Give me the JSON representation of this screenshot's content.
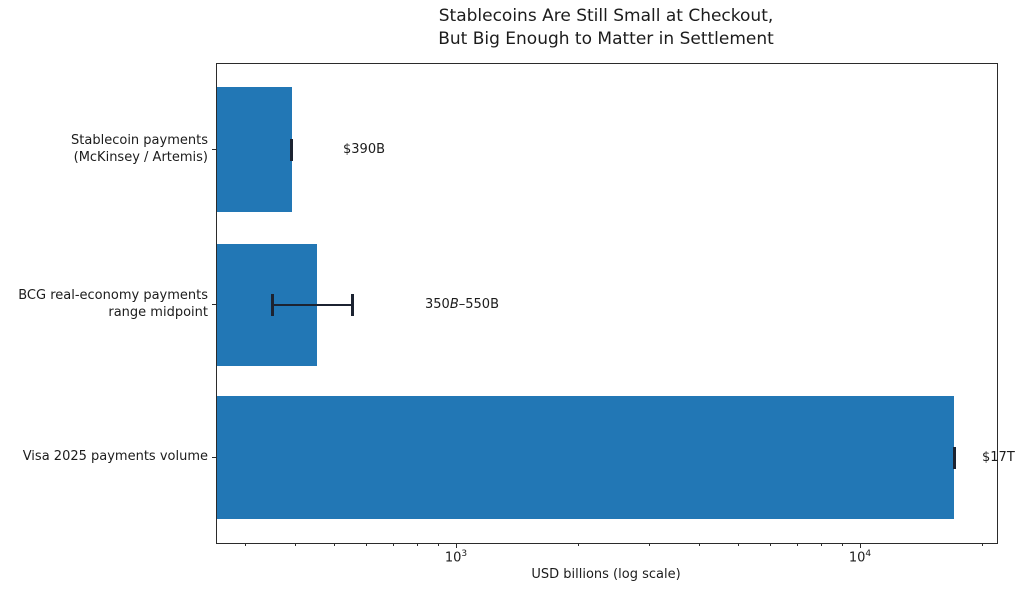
{
  "chart_data": {
    "type": "bar",
    "orientation": "horizontal",
    "title": "Stablecoins Are Still Small at Checkout,\nBut Big Enough to Matter in Settlement",
    "xlabel": "USD billions (log scale)",
    "xscale": "log",
    "xlim": [
      255,
      21700
    ],
    "grid": false,
    "legend": "none",
    "categories": [
      "Stablecoin payments\n(McKinsey / Artemis)",
      "BCG real-economy payments\nrange midpoint",
      "Visa 2025 payments volume"
    ],
    "values": [
      390,
      450,
      17000
    ],
    "bars": [
      {
        "category": "Stablecoin payments\n(McKinsey / Artemis)",
        "value": 390,
        "error_low": 390,
        "error_high": 390,
        "label_segments": [
          {
            "text": "$390B",
            "italic": false
          }
        ]
      },
      {
        "category": "BCG real-economy payments\nrange midpoint",
        "value": 450,
        "error_low": 350,
        "error_high": 550,
        "label_segments": [
          {
            "text": "350",
            "italic": false
          },
          {
            "text": "B",
            "italic": true
          },
          {
            "text": "–550B",
            "italic": false
          }
        ]
      },
      {
        "category": "Visa 2025 payments volume",
        "value": 17000,
        "error_low": 17000,
        "error_high": 17000,
        "label_segments": [
          {
            "text": "$17T",
            "italic": false
          }
        ]
      }
    ],
    "x_major_ticks": [
      {
        "value": 1000,
        "base": "10",
        "exp": "3"
      },
      {
        "value": 10000,
        "base": "10",
        "exp": "4"
      }
    ],
    "colors": {
      "bar": "#2277b5",
      "error": "#1c2331",
      "spine": "#2b2b2b",
      "text": "#1c1c1c",
      "background": "#ffffff"
    }
  }
}
